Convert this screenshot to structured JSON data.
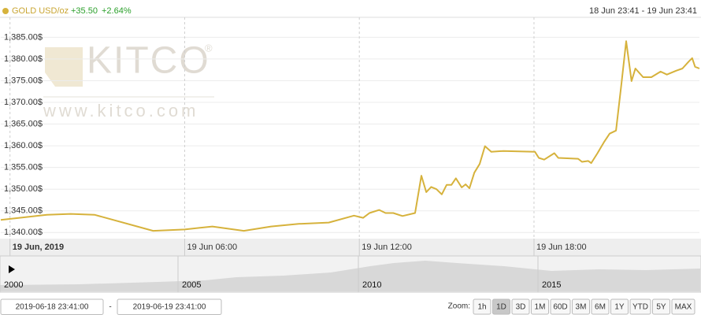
{
  "header": {
    "series_name": "GOLD USD/oz",
    "change": "+35.50",
    "change_pct": "+2.64%",
    "range": "18 Jun 23:41 - 19 Jun 23:41"
  },
  "watermark": {
    "brand": "KITCO",
    "registered": "®",
    "url": "www.kitco.com"
  },
  "chart_data": {
    "type": "line",
    "color": "#d6b23c",
    "grid": true,
    "x": [
      "2019-06-18T23:41",
      "2019-06-19T01:16",
      "2019-06-19T02:05",
      "2019-06-19T02:54",
      "2019-06-19T04:55",
      "2019-06-19T06:00",
      "2019-06-19T06:57",
      "2019-06-19T08:02",
      "2019-06-19T08:58",
      "2019-06-19T09:55",
      "2019-06-19T10:57",
      "2019-06-19T11:49",
      "2019-06-19T12:08",
      "2019-06-19T12:21",
      "2019-06-19T12:41",
      "2019-06-19T12:54",
      "2019-06-19T13:10",
      "2019-06-19T13:29",
      "2019-06-19T13:55",
      "2019-06-19T14:08",
      "2019-06-19T14:18",
      "2019-06-19T14:28",
      "2019-06-19T14:39",
      "2019-06-19T14:50",
      "2019-06-19T15:00",
      "2019-06-19T15:10",
      "2019-06-19T15:19",
      "2019-06-19T15:31",
      "2019-06-19T15:39",
      "2019-06-19T15:47",
      "2019-06-19T15:57",
      "2019-06-19T16:08",
      "2019-06-19T16:19",
      "2019-06-19T16:32",
      "2019-06-19T16:57",
      "2019-06-19T18:02",
      "2019-06-19T18:10",
      "2019-06-19T18:21",
      "2019-06-19T18:42",
      "2019-06-19T18:50",
      "2019-06-19T19:31",
      "2019-06-19T19:39",
      "2019-06-19T19:52",
      "2019-06-19T19:58",
      "2019-06-19T20:11",
      "2019-06-19T20:24",
      "2019-06-19T20:36",
      "2019-06-19T20:49",
      "2019-06-19T21:00",
      "2019-06-19T21:10",
      "2019-06-19T21:21",
      "2019-06-19T21:29",
      "2019-06-19T21:45",
      "2019-06-19T22:02",
      "2019-06-19T22:21",
      "2019-06-19T22:34",
      "2019-06-19T22:53",
      "2019-06-19T23:06",
      "2019-06-19T23:19",
      "2019-06-19T23:26",
      "2019-06-19T23:32",
      "2019-06-19T23:41"
    ],
    "values": [
      1342.9,
      1344.1,
      1344.3,
      1344.1,
      1340.4,
      1340.7,
      1341.4,
      1340.4,
      1341.4,
      1342.0,
      1342.3,
      1343.9,
      1343.4,
      1344.5,
      1345.2,
      1344.5,
      1344.5,
      1343.8,
      1344.5,
      1353.1,
      1349.3,
      1350.5,
      1350.0,
      1348.8,
      1351.0,
      1351.0,
      1352.5,
      1350.4,
      1351.1,
      1350.2,
      1353.8,
      1355.8,
      1359.9,
      1358.6,
      1358.8,
      1358.6,
      1357.2,
      1356.8,
      1358.3,
      1357.2,
      1357.0,
      1356.3,
      1356.5,
      1356.0,
      1358.3,
      1360.8,
      1362.8,
      1363.5,
      1374.0,
      1384.1,
      1374.9,
      1377.8,
      1375.8,
      1375.8,
      1377.1,
      1376.4,
      1377.3,
      1377.8,
      1379.4,
      1380.2,
      1378.2,
      1377.8
    ],
    "xlim": [
      "2019-06-18T23:41",
      "2019-06-19T23:41"
    ],
    "xticks": [
      {
        "value": "2019-06-19T00:00",
        "label": "19 Jun, 2019"
      },
      {
        "value": "2019-06-19T06:00",
        "label": "19 Jun 06:00"
      },
      {
        "value": "2019-06-19T12:00",
        "label": "19 Jun 12:00"
      },
      {
        "value": "2019-06-19T18:00",
        "label": "19 Jun 18:00"
      }
    ],
    "ylim": [
      1338.6,
      1389.6
    ],
    "yticks": [
      {
        "value": 1340,
        "label": "1,340.00$"
      },
      {
        "value": 1345,
        "label": "1,345.00$"
      },
      {
        "value": 1350,
        "label": "1,350.00$"
      },
      {
        "value": 1355,
        "label": "1,355.00$"
      },
      {
        "value": 1360,
        "label": "1,360.00$"
      },
      {
        "value": 1365,
        "label": "1,365.00$"
      },
      {
        "value": 1370,
        "label": "1,370.00$"
      },
      {
        "value": 1375,
        "label": "1,375.00$"
      },
      {
        "value": 1380,
        "label": "1,380.00$"
      },
      {
        "value": 1385,
        "label": "1,385.00$"
      }
    ]
  },
  "navigator": {
    "labels": [
      "2000",
      "2005",
      "2010",
      "2015"
    ]
  },
  "controls": {
    "from": "2019-06-18 23:41:00",
    "separator": "-",
    "to": "2019-06-19 23:41:00",
    "zoom_label": "Zoom:",
    "buttons": [
      "1h",
      "1D",
      "3D",
      "1M",
      "60D",
      "3M",
      "6M",
      "1Y",
      "YTD",
      "5Y",
      "MAX"
    ],
    "active": "1D"
  }
}
